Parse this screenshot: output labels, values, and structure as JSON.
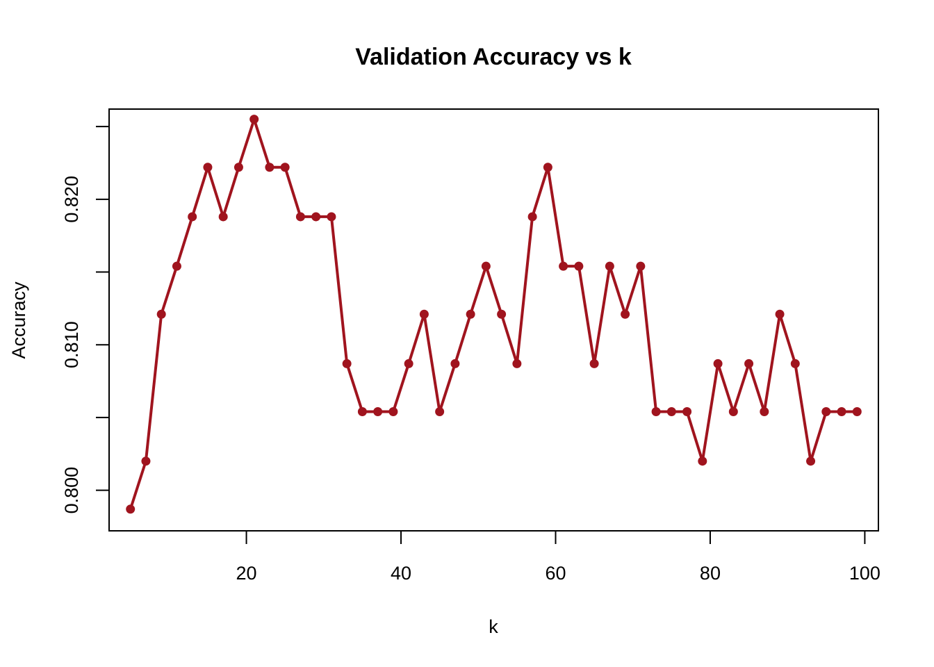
{
  "chart_data": {
    "type": "line",
    "title": "Validation Accuracy vs k",
    "xlabel": "k",
    "ylabel": "Accuracy",
    "xlim": [
      2.24,
      101.76
    ],
    "ylim": [
      0.79721,
      0.8262
    ],
    "x_ticks": [
      20,
      40,
      60,
      80,
      100
    ],
    "x_tick_labels": [
      "20",
      "40",
      "60",
      "80",
      "100"
    ],
    "y_ticks": [
      0.8,
      0.805,
      0.81,
      0.815,
      0.82,
      0.825
    ],
    "y_tick_labels": [
      "0.800",
      "",
      "0.810",
      "",
      "0.820",
      ""
    ],
    "grid": false,
    "legend": "none",
    "line_color": "#A0141E",
    "series": [
      {
        "x": [
          5,
          7,
          9,
          11,
          13,
          15,
          17,
          19,
          21,
          23,
          25,
          27,
          29,
          31,
          33,
          35,
          37,
          39,
          41,
          43,
          45,
          47,
          49,
          51,
          53,
          55,
          57,
          59,
          61,
          63,
          65,
          67,
          69,
          71,
          73,
          75,
          77,
          79,
          81,
          83,
          85,
          87,
          89,
          91,
          93,
          95,
          97,
          99
        ],
        "values": [
          0.7987,
          0.802,
          0.8121,
          0.8154,
          0.8188,
          0.8222,
          0.8188,
          0.8222,
          0.8255,
          0.8222,
          0.8222,
          0.8188,
          0.8188,
          0.8188,
          0.8087,
          0.8054,
          0.8054,
          0.8054,
          0.8087,
          0.8121,
          0.8054,
          0.8087,
          0.8121,
          0.8154,
          0.8121,
          0.8087,
          0.8188,
          0.8222,
          0.8154,
          0.8154,
          0.8087,
          0.8154,
          0.8121,
          0.8154,
          0.8054,
          0.8054,
          0.8054,
          0.802,
          0.8087,
          0.8054,
          0.8087,
          0.8054,
          0.8121,
          0.8087,
          0.802,
          0.8054,
          0.8054,
          0.8054
        ]
      }
    ]
  }
}
